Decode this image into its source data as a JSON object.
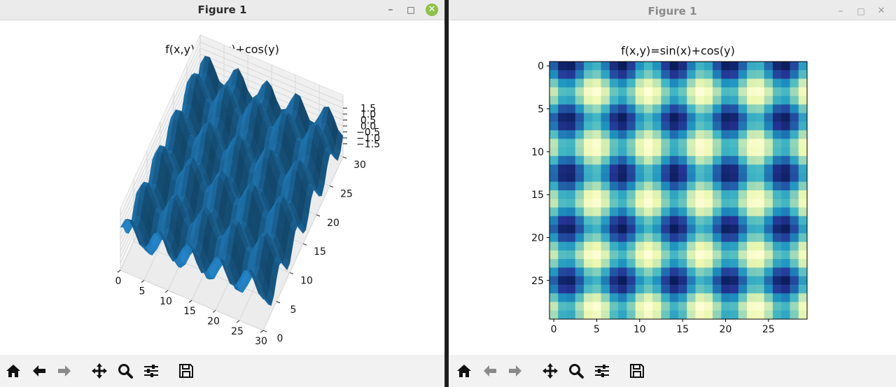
{
  "windows": [
    {
      "title": "Figure 1",
      "plot_title": "f(x,y)=sin(x)+cos(y)",
      "z_ticks": [
        "1.5",
        "1.0",
        "0.5",
        "0.0",
        "−0.5",
        "−1.0",
        "−1.5"
      ],
      "x_ticks": [
        "0",
        "5",
        "10",
        "15",
        "20",
        "25",
        "30"
      ],
      "y_ticks": [
        "30",
        "25",
        "20",
        "15",
        "10",
        "5",
        "0"
      ],
      "surface_color": "#1f77b4"
    },
    {
      "title": "Figure 1",
      "plot_title": "f(x,y)=sin(x)+cos(y)",
      "x_ticks": [
        "0",
        "5",
        "10",
        "15",
        "20",
        "25"
      ],
      "y_ticks": [
        "0",
        "5",
        "10",
        "15",
        "20",
        "25"
      ],
      "colormap": "YlGnBu"
    }
  ],
  "window_controls": {
    "minimize": "–",
    "maximize": "□",
    "close": "✕"
  },
  "toolbar_icons": [
    "home-icon",
    "back-arrow-icon",
    "forward-arrow-icon",
    "pan-icon",
    "zoom-icon",
    "configure-subplots-icon",
    "save-icon"
  ],
  "chart_data": [
    {
      "type": "surface",
      "title": "f(x,y)=sin(x)+cos(y)",
      "function": "sin(x)+cos(y)",
      "xlim": [
        0,
        30
      ],
      "ylim": [
        0,
        30
      ],
      "zlim": [
        -2,
        2
      ],
      "grid": true
    },
    {
      "type": "heatmap",
      "title": "f(x,y)=sin(x)+cos(y)",
      "function": "sin(x)+cos(y)",
      "rows": 30,
      "cols": 30,
      "colormap": "YlGnBu",
      "xlim": [
        -0.5,
        29.5
      ],
      "ylim": [
        29.5,
        -0.5
      ]
    }
  ]
}
